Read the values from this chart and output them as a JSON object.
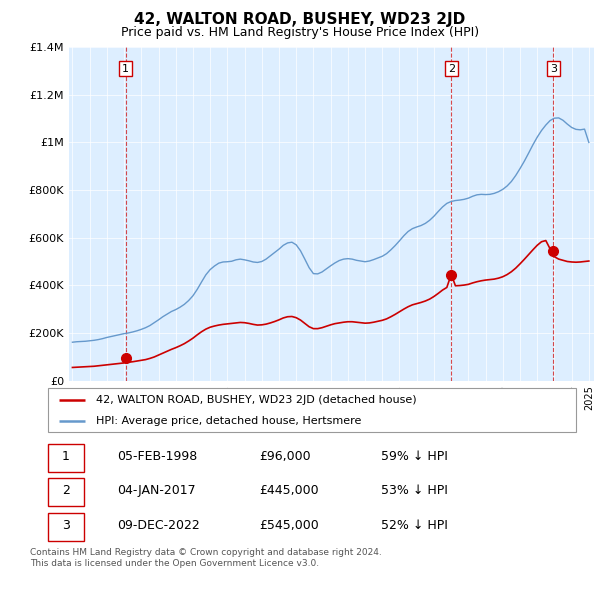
{
  "title": "42, WALTON ROAD, BUSHEY, WD23 2JD",
  "subtitle": "Price paid vs. HM Land Registry's House Price Index (HPI)",
  "legend_line1": "42, WALTON ROAD, BUSHEY, WD23 2JD (detached house)",
  "legend_line2": "HPI: Average price, detached house, Hertsmere",
  "transactions": [
    {
      "num": 1,
      "date": "05-FEB-1998",
      "price": 96000,
      "year": 1998.09,
      "hpi_pct": "59% ↓ HPI"
    },
    {
      "num": 2,
      "date": "04-JAN-2017",
      "price": 445000,
      "year": 2017.01,
      "hpi_pct": "53% ↓ HPI"
    },
    {
      "num": 3,
      "date": "09-DEC-2022",
      "price": 545000,
      "year": 2022.94,
      "hpi_pct": "52% ↓ HPI"
    }
  ],
  "footnote1": "Contains HM Land Registry data © Crown copyright and database right 2024.",
  "footnote2": "This data is licensed under the Open Government Licence v3.0.",
  "hpi_color": "#6699cc",
  "price_color": "#cc0000",
  "dashed_color": "#cc0000",
  "bg_color": "#ddeeff",
  "grid_color": "#ffffff",
  "ylim": [
    0,
    1400000
  ],
  "ytick_vals": [
    0,
    200000,
    400000,
    600000,
    800000,
    1000000,
    1200000,
    1400000
  ],
  "ytick_labels": [
    "£0",
    "£200K",
    "£400K",
    "£600K",
    "£800K",
    "£1M",
    "£1.2M",
    "£1.4M"
  ],
  "xlim_start": 1994.8,
  "xlim_end": 2025.3,
  "hpi_data": [
    [
      1995.0,
      161000
    ],
    [
      1995.25,
      163000
    ],
    [
      1995.5,
      164000
    ],
    [
      1995.75,
      165000
    ],
    [
      1996.0,
      167000
    ],
    [
      1996.25,
      169000
    ],
    [
      1996.5,
      172000
    ],
    [
      1996.75,
      176000
    ],
    [
      1997.0,
      181000
    ],
    [
      1997.25,
      185000
    ],
    [
      1997.5,
      189000
    ],
    [
      1997.75,
      193000
    ],
    [
      1998.0,
      197000
    ],
    [
      1998.25,
      200000
    ],
    [
      1998.5,
      204000
    ],
    [
      1998.75,
      209000
    ],
    [
      1999.0,
      215000
    ],
    [
      1999.25,
      222000
    ],
    [
      1999.5,
      231000
    ],
    [
      1999.75,
      243000
    ],
    [
      2000.0,
      255000
    ],
    [
      2000.25,
      268000
    ],
    [
      2000.5,
      279000
    ],
    [
      2000.75,
      290000
    ],
    [
      2001.0,
      298000
    ],
    [
      2001.25,
      308000
    ],
    [
      2001.5,
      320000
    ],
    [
      2001.75,
      336000
    ],
    [
      2002.0,
      356000
    ],
    [
      2002.25,
      383000
    ],
    [
      2002.5,
      414000
    ],
    [
      2002.75,
      444000
    ],
    [
      2003.0,
      466000
    ],
    [
      2003.25,
      481000
    ],
    [
      2003.5,
      493000
    ],
    [
      2003.75,
      498000
    ],
    [
      2004.0,
      499000
    ],
    [
      2004.25,
      501000
    ],
    [
      2004.5,
      507000
    ],
    [
      2004.75,
      510000
    ],
    [
      2005.0,
      507000
    ],
    [
      2005.25,
      503000
    ],
    [
      2005.5,
      498000
    ],
    [
      2005.75,
      496000
    ],
    [
      2006.0,
      500000
    ],
    [
      2006.25,
      510000
    ],
    [
      2006.5,
      524000
    ],
    [
      2006.75,
      538000
    ],
    [
      2007.0,
      552000
    ],
    [
      2007.25,
      568000
    ],
    [
      2007.5,
      578000
    ],
    [
      2007.75,
      581000
    ],
    [
      2008.0,
      570000
    ],
    [
      2008.25,
      545000
    ],
    [
      2008.5,
      510000
    ],
    [
      2008.75,
      474000
    ],
    [
      2009.0,
      449000
    ],
    [
      2009.25,
      448000
    ],
    [
      2009.5,
      456000
    ],
    [
      2009.75,
      469000
    ],
    [
      2010.0,
      482000
    ],
    [
      2010.25,
      494000
    ],
    [
      2010.5,
      504000
    ],
    [
      2010.75,
      510000
    ],
    [
      2011.0,
      512000
    ],
    [
      2011.25,
      510000
    ],
    [
      2011.5,
      505000
    ],
    [
      2011.75,
      502000
    ],
    [
      2012.0,
      499000
    ],
    [
      2012.25,
      502000
    ],
    [
      2012.5,
      508000
    ],
    [
      2012.75,
      515000
    ],
    [
      2013.0,
      522000
    ],
    [
      2013.25,
      533000
    ],
    [
      2013.5,
      549000
    ],
    [
      2013.75,
      567000
    ],
    [
      2014.0,
      587000
    ],
    [
      2014.25,
      608000
    ],
    [
      2014.5,
      626000
    ],
    [
      2014.75,
      638000
    ],
    [
      2015.0,
      645000
    ],
    [
      2015.25,
      651000
    ],
    [
      2015.5,
      660000
    ],
    [
      2015.75,
      673000
    ],
    [
      2016.0,
      690000
    ],
    [
      2016.25,
      710000
    ],
    [
      2016.5,
      729000
    ],
    [
      2016.75,
      744000
    ],
    [
      2017.0,
      752000
    ],
    [
      2017.25,
      756000
    ],
    [
      2017.5,
      758000
    ],
    [
      2017.75,
      761000
    ],
    [
      2018.0,
      766000
    ],
    [
      2018.25,
      774000
    ],
    [
      2018.5,
      780000
    ],
    [
      2018.75,
      782000
    ],
    [
      2019.0,
      781000
    ],
    [
      2019.25,
      782000
    ],
    [
      2019.5,
      786000
    ],
    [
      2019.75,
      793000
    ],
    [
      2020.0,
      803000
    ],
    [
      2020.25,
      817000
    ],
    [
      2020.5,
      836000
    ],
    [
      2020.75,
      861000
    ],
    [
      2021.0,
      890000
    ],
    [
      2021.25,
      921000
    ],
    [
      2021.5,
      955000
    ],
    [
      2021.75,
      990000
    ],
    [
      2022.0,
      1022000
    ],
    [
      2022.25,
      1050000
    ],
    [
      2022.5,
      1073000
    ],
    [
      2022.75,
      1092000
    ],
    [
      2023.0,
      1102000
    ],
    [
      2023.25,
      1103000
    ],
    [
      2023.5,
      1093000
    ],
    [
      2023.75,
      1077000
    ],
    [
      2024.0,
      1063000
    ],
    [
      2024.25,
      1055000
    ],
    [
      2024.5,
      1053000
    ],
    [
      2024.75,
      1056000
    ],
    [
      2025.0,
      1000000
    ]
  ],
  "price_data": [
    [
      1995.0,
      55000
    ],
    [
      1995.25,
      56000
    ],
    [
      1995.5,
      57000
    ],
    [
      1995.75,
      58000
    ],
    [
      1996.0,
      59000
    ],
    [
      1996.25,
      60000
    ],
    [
      1996.5,
      62000
    ],
    [
      1996.75,
      64000
    ],
    [
      1997.0,
      66000
    ],
    [
      1997.25,
      68000
    ],
    [
      1997.5,
      70000
    ],
    [
      1997.75,
      72000
    ],
    [
      1998.0,
      74000
    ],
    [
      1998.09,
      96000
    ],
    [
      1998.25,
      77000
    ],
    [
      1998.5,
      79000
    ],
    [
      1998.75,
      82000
    ],
    [
      1999.0,
      85000
    ],
    [
      1999.25,
      88000
    ],
    [
      1999.5,
      93000
    ],
    [
      1999.75,
      99000
    ],
    [
      2000.0,
      107000
    ],
    [
      2000.25,
      115000
    ],
    [
      2000.5,
      123000
    ],
    [
      2000.75,
      131000
    ],
    [
      2001.0,
      138000
    ],
    [
      2001.25,
      146000
    ],
    [
      2001.5,
      155000
    ],
    [
      2001.75,
      166000
    ],
    [
      2002.0,
      178000
    ],
    [
      2002.25,
      192000
    ],
    [
      2002.5,
      205000
    ],
    [
      2002.75,
      216000
    ],
    [
      2003.0,
      224000
    ],
    [
      2003.25,
      229000
    ],
    [
      2003.5,
      233000
    ],
    [
      2003.75,
      236000
    ],
    [
      2004.0,
      238000
    ],
    [
      2004.25,
      240000
    ],
    [
      2004.5,
      242000
    ],
    [
      2004.75,
      244000
    ],
    [
      2005.0,
      243000
    ],
    [
      2005.25,
      240000
    ],
    [
      2005.5,
      236000
    ],
    [
      2005.75,
      233000
    ],
    [
      2006.0,
      234000
    ],
    [
      2006.25,
      237000
    ],
    [
      2006.5,
      242000
    ],
    [
      2006.75,
      248000
    ],
    [
      2007.0,
      255000
    ],
    [
      2007.25,
      263000
    ],
    [
      2007.5,
      268000
    ],
    [
      2007.75,
      269000
    ],
    [
      2008.0,
      264000
    ],
    [
      2008.25,
      254000
    ],
    [
      2008.5,
      240000
    ],
    [
      2008.75,
      226000
    ],
    [
      2009.0,
      218000
    ],
    [
      2009.25,
      218000
    ],
    [
      2009.5,
      222000
    ],
    [
      2009.75,
      228000
    ],
    [
      2010.0,
      234000
    ],
    [
      2010.25,
      239000
    ],
    [
      2010.5,
      242000
    ],
    [
      2010.75,
      245000
    ],
    [
      2011.0,
      247000
    ],
    [
      2011.25,
      247000
    ],
    [
      2011.5,
      245000
    ],
    [
      2011.75,
      243000
    ],
    [
      2012.0,
      241000
    ],
    [
      2012.25,
      242000
    ],
    [
      2012.5,
      245000
    ],
    [
      2012.75,
      249000
    ],
    [
      2013.0,
      253000
    ],
    [
      2013.25,
      259000
    ],
    [
      2013.5,
      268000
    ],
    [
      2013.75,
      278000
    ],
    [
      2014.0,
      289000
    ],
    [
      2014.25,
      300000
    ],
    [
      2014.5,
      310000
    ],
    [
      2014.75,
      318000
    ],
    [
      2015.0,
      323000
    ],
    [
      2015.25,
      328000
    ],
    [
      2015.5,
      334000
    ],
    [
      2015.75,
      342000
    ],
    [
      2016.0,
      353000
    ],
    [
      2016.25,
      366000
    ],
    [
      2016.5,
      380000
    ],
    [
      2016.75,
      391000
    ],
    [
      2017.0,
      445000
    ],
    [
      2017.01,
      445000
    ],
    [
      2017.25,
      398000
    ],
    [
      2017.5,
      399000
    ],
    [
      2017.75,
      401000
    ],
    [
      2018.0,
      404000
    ],
    [
      2018.25,
      410000
    ],
    [
      2018.5,
      415000
    ],
    [
      2018.75,
      419000
    ],
    [
      2019.0,
      422000
    ],
    [
      2019.25,
      424000
    ],
    [
      2019.5,
      426000
    ],
    [
      2019.75,
      430000
    ],
    [
      2020.0,
      436000
    ],
    [
      2020.25,
      445000
    ],
    [
      2020.5,
      457000
    ],
    [
      2020.75,
      472000
    ],
    [
      2021.0,
      490000
    ],
    [
      2021.25,
      509000
    ],
    [
      2021.5,
      529000
    ],
    [
      2021.75,
      549000
    ],
    [
      2022.0,
      568000
    ],
    [
      2022.25,
      583000
    ],
    [
      2022.5,
      588000
    ],
    [
      2022.75,
      553000
    ],
    [
      2022.94,
      545000
    ],
    [
      2023.0,
      520000
    ],
    [
      2023.25,
      510000
    ],
    [
      2023.5,
      505000
    ],
    [
      2023.75,
      500000
    ],
    [
      2024.0,
      498000
    ],
    [
      2024.25,
      497000
    ],
    [
      2024.5,
      498000
    ],
    [
      2024.75,
      500000
    ],
    [
      2025.0,
      502000
    ]
  ]
}
